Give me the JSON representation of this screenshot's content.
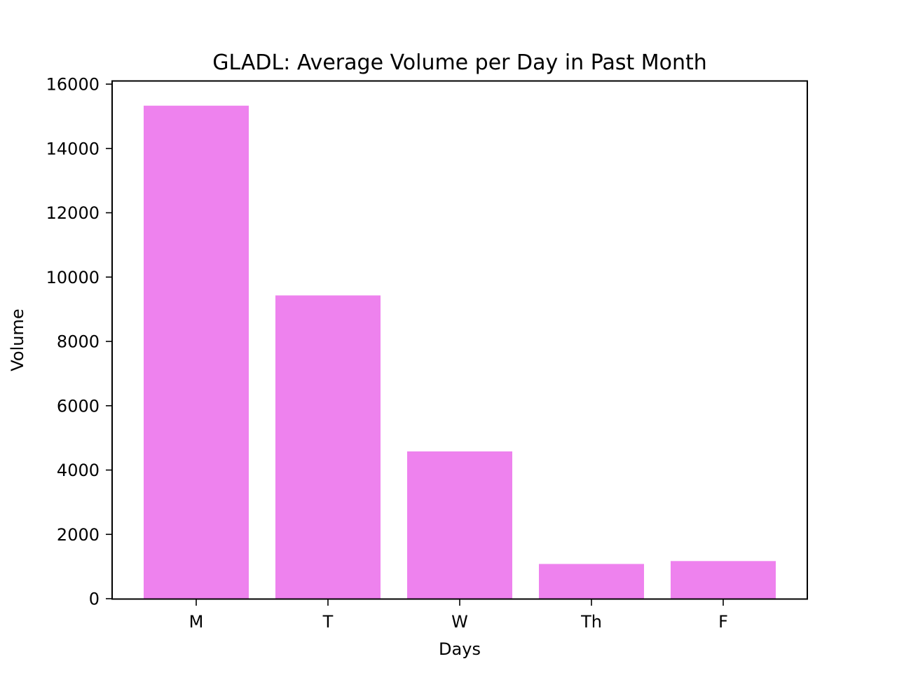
{
  "chart_data": {
    "type": "bar",
    "title": "GLADL: Average Volume per Day in Past Month",
    "xlabel": "Days",
    "ylabel": "Volume",
    "categories": [
      "M",
      "T",
      "W",
      "Th",
      "F"
    ],
    "values": [
      15330,
      9430,
      4580,
      1080,
      1170
    ],
    "ylim": [
      0,
      16000
    ],
    "yticks": [
      0,
      2000,
      4000,
      6000,
      8000,
      10000,
      12000,
      14000,
      16000
    ],
    "ytick_labels": [
      "0",
      "2000",
      "4000",
      "6000",
      "8000",
      "10000",
      "12000",
      "14000",
      "16000"
    ],
    "bar_color": "#ee82ee",
    "grid": false,
    "legend": "none"
  }
}
